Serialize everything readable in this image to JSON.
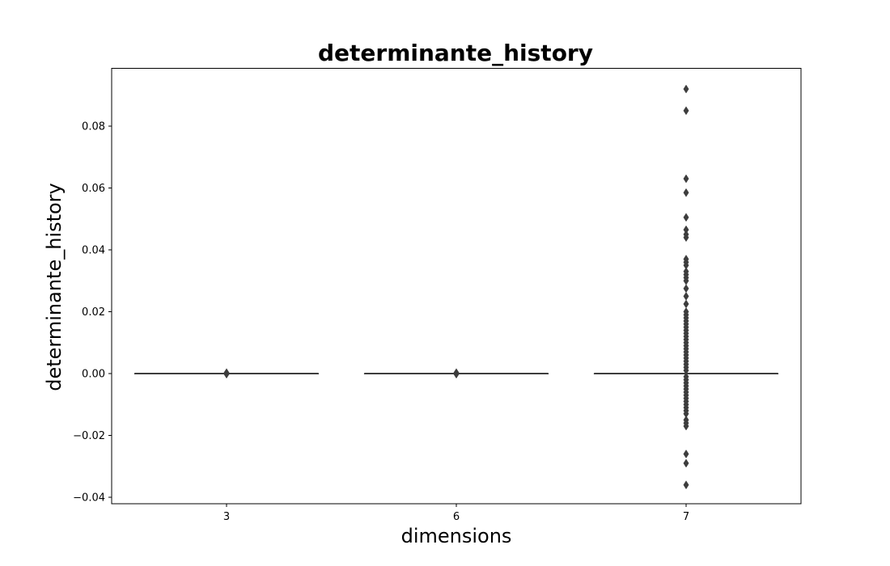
{
  "chart_data": {
    "type": "box",
    "title": "determinante_history",
    "xlabel": "dimensions",
    "ylabel": "determinante_history",
    "categories": [
      "3",
      "6",
      "7"
    ],
    "ylim": [
      -0.042,
      0.098
    ],
    "yticks": [
      -0.04,
      -0.02,
      0.0,
      0.02,
      0.04,
      0.06,
      0.08
    ],
    "ytick_labels": [
      "−0.04",
      "−0.02",
      "0.00",
      "0.02",
      "0.04",
      "0.06",
      "0.08"
    ],
    "grid": false,
    "box_color": "#3d3d3d",
    "boxes": [
      {
        "category": "3",
        "q1": 0.0,
        "median": 0.0,
        "q3": 0.0,
        "whisker_low": 0.0,
        "whisker_high": 0.0,
        "outliers": [
          0.0003,
          0.0001,
          -0.0001,
          -0.0002
        ]
      },
      {
        "category": "6",
        "q1": 0.0,
        "median": 0.0,
        "q3": 0.0,
        "whisker_low": 0.0,
        "whisker_high": 0.0,
        "outliers": [
          0.0003,
          0.0001,
          -0.0001,
          -0.0002
        ]
      },
      {
        "category": "7",
        "q1": 0.0,
        "median": 0.0,
        "q3": 0.0,
        "whisker_low": 0.0,
        "whisker_high": 0.0,
        "outliers": [
          0.092,
          0.085,
          0.063,
          0.0585,
          0.0505,
          0.0465,
          0.045,
          0.044,
          0.037,
          0.036,
          0.035,
          0.033,
          0.032,
          0.031,
          0.03,
          0.0275,
          0.025,
          0.0225,
          0.02,
          0.019,
          0.018,
          0.017,
          0.016,
          0.015,
          0.014,
          0.013,
          0.012,
          0.011,
          0.01,
          0.009,
          0.008,
          0.007,
          0.006,
          0.005,
          0.004,
          0.003,
          0.002,
          0.001,
          -0.001,
          -0.002,
          -0.003,
          -0.004,
          -0.005,
          -0.006,
          -0.007,
          -0.008,
          -0.009,
          -0.01,
          -0.011,
          -0.012,
          -0.013,
          -0.015,
          -0.016,
          -0.017,
          -0.026,
          -0.029,
          -0.036
        ]
      }
    ]
  }
}
